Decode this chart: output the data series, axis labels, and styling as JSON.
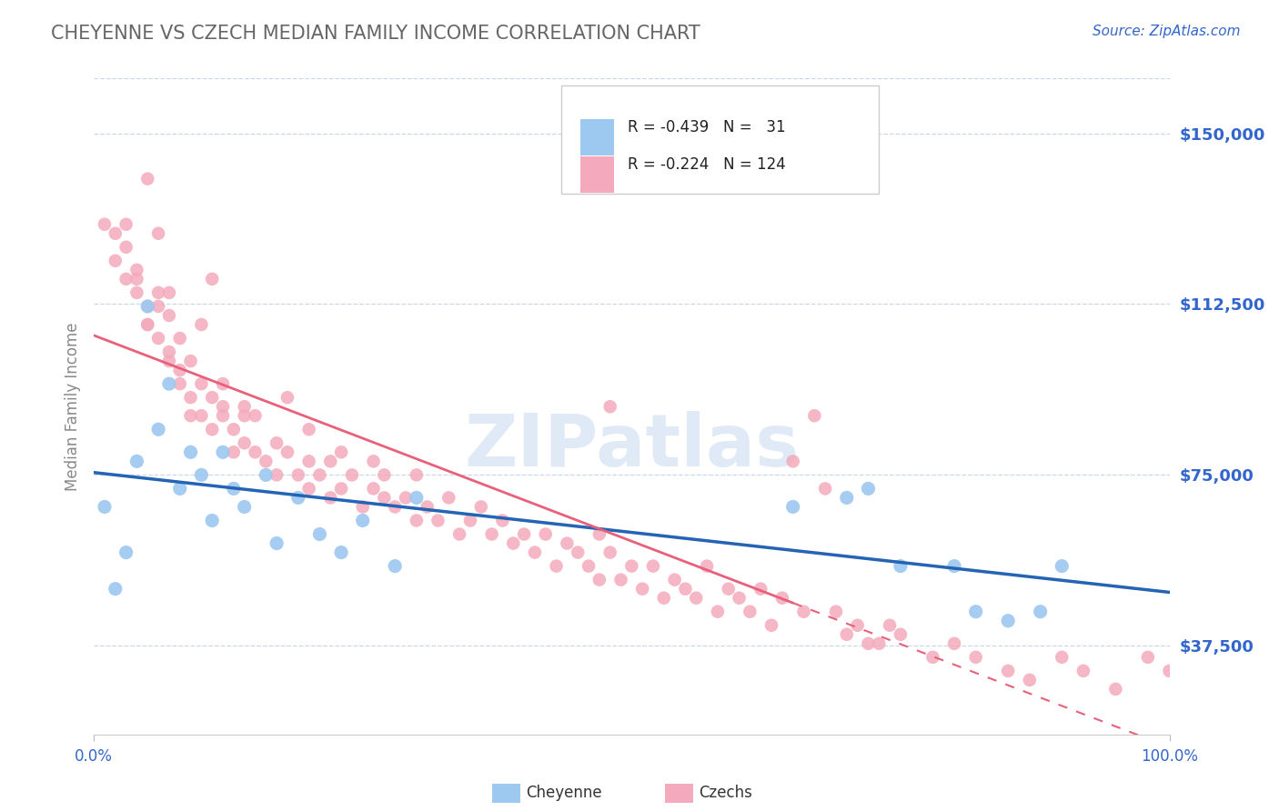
{
  "title": "CHEYENNE VS CZECH MEDIAN FAMILY INCOME CORRELATION CHART",
  "source": "Source: ZipAtlas.com",
  "ylabel": "Median Family Income",
  "y_ticks": [
    37500,
    75000,
    112500,
    150000
  ],
  "y_tick_labels": [
    "$37,500",
    "$75,000",
    "$112,500",
    "$150,000"
  ],
  "x_min": 0.0,
  "x_max": 1.0,
  "y_min": 18000,
  "y_max": 162000,
  "cheyenne_R": -0.439,
  "cheyenne_N": 31,
  "czech_R": -0.224,
  "czech_N": 124,
  "cheyenne_color": "#9DC8F0",
  "czech_color": "#F4AABC",
  "cheyenne_line_color": "#2464B4",
  "czech_line_color": "#E8607A",
  "title_color": "#666666",
  "axis_tick_color": "#3366CC",
  "watermark_color": "#C8D8F0",
  "cheyenne_x": [
    0.01,
    0.02,
    0.03,
    0.04,
    0.05,
    0.06,
    0.07,
    0.08,
    0.09,
    0.1,
    0.11,
    0.12,
    0.13,
    0.14,
    0.16,
    0.17,
    0.19,
    0.21,
    0.23,
    0.25,
    0.28,
    0.3,
    0.65,
    0.7,
    0.72,
    0.75,
    0.8,
    0.82,
    0.85,
    0.88,
    0.9
  ],
  "cheyenne_y": [
    68000,
    50000,
    58000,
    78000,
    112000,
    85000,
    95000,
    72000,
    80000,
    75000,
    65000,
    80000,
    72000,
    68000,
    75000,
    60000,
    70000,
    62000,
    58000,
    65000,
    55000,
    70000,
    68000,
    70000,
    72000,
    55000,
    55000,
    45000,
    43000,
    45000,
    55000
  ],
  "czech_x": [
    0.01,
    0.02,
    0.02,
    0.03,
    0.03,
    0.04,
    0.04,
    0.05,
    0.05,
    0.06,
    0.06,
    0.07,
    0.07,
    0.08,
    0.08,
    0.09,
    0.09,
    0.1,
    0.1,
    0.11,
    0.11,
    0.12,
    0.12,
    0.13,
    0.13,
    0.14,
    0.14,
    0.15,
    0.16,
    0.17,
    0.17,
    0.18,
    0.19,
    0.2,
    0.2,
    0.21,
    0.22,
    0.22,
    0.23,
    0.24,
    0.25,
    0.26,
    0.27,
    0.27,
    0.28,
    0.29,
    0.3,
    0.31,
    0.32,
    0.33,
    0.34,
    0.35,
    0.36,
    0.37,
    0.38,
    0.39,
    0.4,
    0.41,
    0.42,
    0.43,
    0.44,
    0.45,
    0.46,
    0.47,
    0.47,
    0.48,
    0.49,
    0.5,
    0.51,
    0.52,
    0.53,
    0.54,
    0.55,
    0.56,
    0.57,
    0.58,
    0.59,
    0.6,
    0.61,
    0.62,
    0.63,
    0.64,
    0.65,
    0.66,
    0.67,
    0.68,
    0.69,
    0.7,
    0.71,
    0.72,
    0.73,
    0.74,
    0.75,
    0.78,
    0.8,
    0.82,
    0.85,
    0.87,
    0.9,
    0.92,
    0.95,
    0.98,
    1.0,
    0.03,
    0.04,
    0.05,
    0.05,
    0.06,
    0.06,
    0.07,
    0.07,
    0.08,
    0.09,
    0.1,
    0.11,
    0.12,
    0.14,
    0.15,
    0.18,
    0.2,
    0.23,
    0.26,
    0.3,
    0.48
  ],
  "czech_y": [
    130000,
    128000,
    122000,
    118000,
    125000,
    115000,
    120000,
    112000,
    108000,
    115000,
    105000,
    110000,
    100000,
    105000,
    95000,
    100000,
    92000,
    95000,
    88000,
    92000,
    85000,
    90000,
    88000,
    85000,
    80000,
    88000,
    82000,
    80000,
    78000,
    82000,
    75000,
    80000,
    75000,
    78000,
    72000,
    75000,
    78000,
    70000,
    72000,
    75000,
    68000,
    72000,
    70000,
    75000,
    68000,
    70000,
    65000,
    68000,
    65000,
    70000,
    62000,
    65000,
    68000,
    62000,
    65000,
    60000,
    62000,
    58000,
    62000,
    55000,
    60000,
    58000,
    55000,
    62000,
    52000,
    58000,
    52000,
    55000,
    50000,
    55000,
    48000,
    52000,
    50000,
    48000,
    55000,
    45000,
    50000,
    48000,
    45000,
    50000,
    42000,
    48000,
    78000,
    45000,
    88000,
    72000,
    45000,
    40000,
    42000,
    38000,
    38000,
    42000,
    40000,
    35000,
    38000,
    35000,
    32000,
    30000,
    35000,
    32000,
    28000,
    35000,
    32000,
    130000,
    118000,
    140000,
    108000,
    128000,
    112000,
    102000,
    115000,
    98000,
    88000,
    108000,
    118000,
    95000,
    90000,
    88000,
    92000,
    85000,
    80000,
    78000,
    75000,
    90000
  ]
}
